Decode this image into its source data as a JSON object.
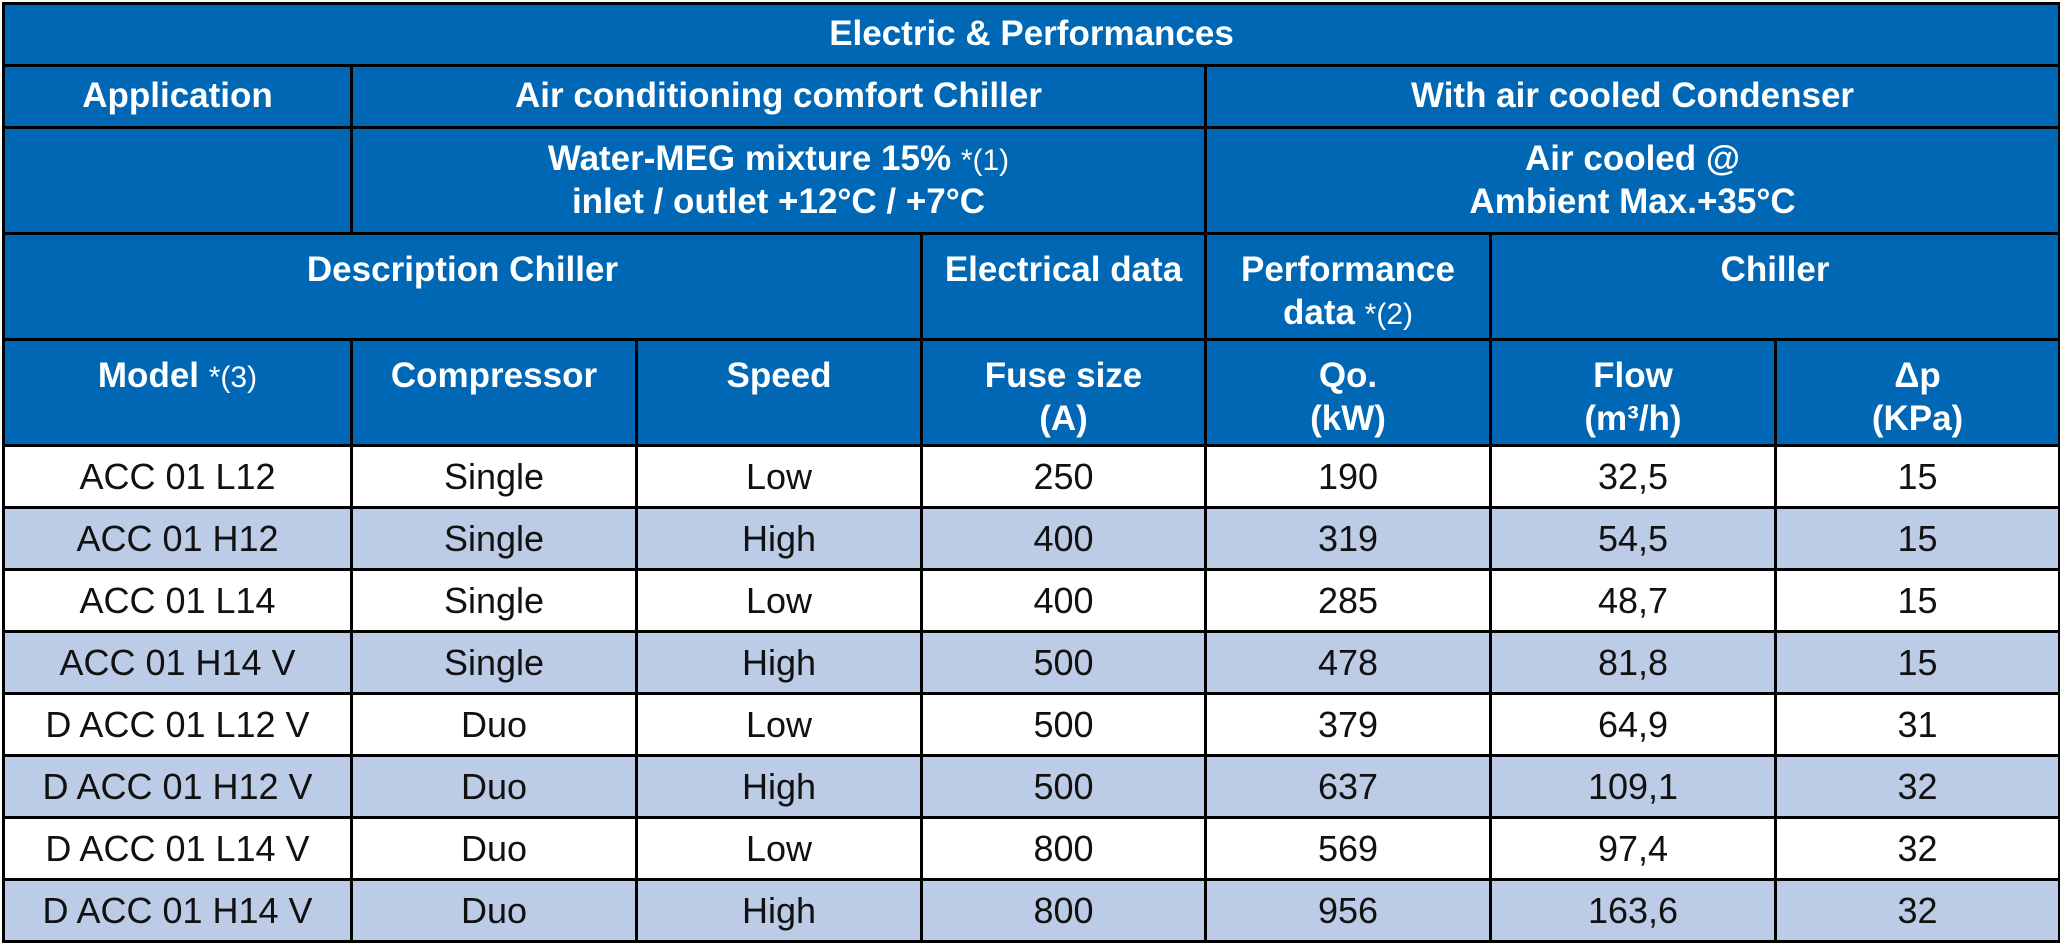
{
  "title": "Electric & Performances",
  "application": {
    "label": "Application",
    "chiller": "Air conditioning comfort Chiller",
    "condenser": "With air cooled Condenser"
  },
  "conditions": {
    "water_line1": "Water-MEG mixture 15%",
    "water_note": "*(1)",
    "water_line2": "inlet / outlet  +12°C / +7°C",
    "air_line1": "Air cooled @",
    "air_line2": "Ambient Max.+35°C"
  },
  "groups": {
    "description": "Description Chiller",
    "electrical": "Electrical data",
    "performance_line1": "Performance",
    "performance_line2": "data",
    "performance_note": "*(2)",
    "chiller": "Chiller"
  },
  "columns": {
    "model": "Model",
    "model_note": "*(3)",
    "compressor": "Compressor",
    "speed": "Speed",
    "fuse_line1": "Fuse size",
    "fuse_line2": "(A)",
    "qo_line1": "Qo.",
    "qo_line2": "(kW)",
    "flow_line1": "Flow",
    "flow_line2": "(m³/h)",
    "dp_line1": "Δp",
    "dp_line2": "(KPa)"
  },
  "rows": [
    [
      "ACC 01 L12",
      "Single",
      "Low",
      "250",
      "190",
      "32,5",
      "15"
    ],
    [
      "ACC 01 H12",
      "Single",
      "High",
      "400",
      "319",
      "54,5",
      "15"
    ],
    [
      "ACC 01 L14",
      "Single",
      "Low",
      "400",
      "285",
      "48,7",
      "15"
    ],
    [
      "ACC 01 H14 V",
      "Single",
      "High",
      "500",
      "478",
      "81,8",
      "15"
    ],
    [
      "D ACC 01 L12 V",
      "Duo",
      "Low",
      "500",
      "379",
      "64,9",
      "31"
    ],
    [
      "D ACC 01 H12 V",
      "Duo",
      "High",
      "500",
      "637",
      "109,1",
      "32"
    ],
    [
      "D ACC 01 L14 V",
      "Duo",
      "Low",
      "800",
      "569",
      "97,4",
      "32"
    ],
    [
      "D ACC 01 H14 V",
      "Duo",
      "High",
      "800",
      "956",
      "163,6",
      "32"
    ]
  ],
  "colors": {
    "header_blue": "#0067b5",
    "row_stripe": "#bccbe6",
    "border": "#000000"
  }
}
